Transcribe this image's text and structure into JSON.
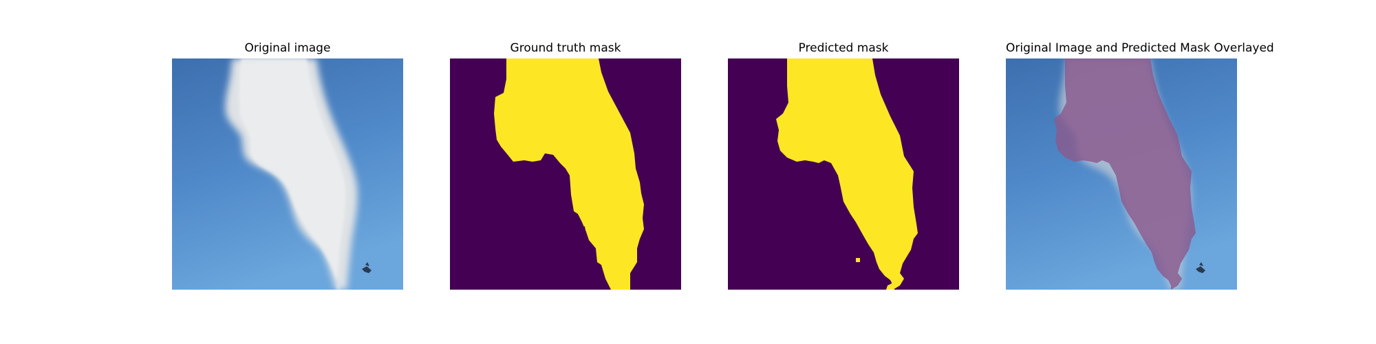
{
  "panels": [
    {
      "title": "Original image",
      "image": "sky-with-white-smoke-plume"
    },
    {
      "title": "Ground truth mask",
      "image": "binary-mask-yellow-on-purple"
    },
    {
      "title": "Predicted mask",
      "image": "binary-mask-yellow-on-purple"
    },
    {
      "title": "Original Image and Predicted Mask Overlayed",
      "image": "sky-with-pink-tinted-plume-overlay"
    }
  ],
  "colors": {
    "mask_background": "#440154",
    "mask_foreground": "#fde725",
    "sky_top": "#3b6fb0",
    "sky_bottom": "#6aa6dc",
    "smoke": "#e6e8ea",
    "overlay_tint": "#a67ea6"
  }
}
